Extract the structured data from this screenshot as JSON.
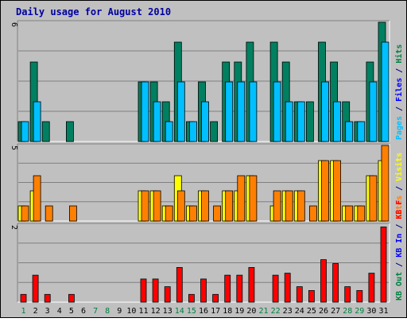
{
  "chart_data": {
    "type": "bar",
    "title": "Daily usage for August 2010",
    "days": [
      "1",
      "2",
      "3",
      "4",
      "5",
      "6",
      "7",
      "8",
      "9",
      "10",
      "11",
      "12",
      "13",
      "14",
      "15",
      "16",
      "17",
      "18",
      "19",
      "20",
      "21",
      "22",
      "23",
      "24",
      "25",
      "26",
      "27",
      "28",
      "29",
      "30",
      "31"
    ],
    "weekend_days": [
      1,
      7,
      8,
      14,
      15,
      21,
      22,
      28,
      29
    ],
    "panels": [
      {
        "max_label": "6",
        "ymax": 6,
        "legend": [
          {
            "text": "Hits",
            "color": "#008040"
          },
          {
            "text": "/",
            "color": "#000080"
          },
          {
            "text": "Files",
            "color": "#0000ff"
          },
          {
            "text": "/",
            "color": "#000080"
          },
          {
            "text": "Pages",
            "color": "#00c0ff"
          }
        ],
        "series": [
          {
            "name": "Hits",
            "color": "#008060",
            "values": [
              1,
              4,
              1,
              0,
              1,
              0,
              0,
              0,
              0,
              0,
              3,
              3,
              2,
              5,
              1,
              3,
              1,
              4,
              4,
              5,
              0,
              5,
              4,
              2,
              2,
              5,
              4,
              2,
              1,
              4,
              6
            ]
          },
          {
            "name": "Files",
            "color": "#00c0ff",
            "values": [
              1,
              2,
              0,
              0,
              0,
              0,
              0,
              0,
              0,
              0,
              3,
              2,
              1,
              3,
              1,
              2,
              0,
              3,
              3,
              3,
              0,
              3,
              2,
              2,
              0,
              3,
              2,
              1,
              1,
              3,
              5
            ]
          }
        ]
      },
      {
        "max_label": "5",
        "ymax": 5,
        "legend": [
          {
            "text": "Visits",
            "color": "#ffff00"
          },
          {
            "text": "/",
            "color": "#000080"
          },
          {
            "text": "Sites",
            "color": "#ff8000"
          }
        ],
        "series": [
          {
            "name": "Visits",
            "color": "#ffff00",
            "values": [
              1,
              2,
              0,
              0,
              0,
              0,
              0,
              0,
              0,
              0,
              2,
              2,
              1,
              3,
              1,
              2,
              0,
              2,
              2,
              3,
              0,
              1,
              2,
              2,
              0,
              4,
              4,
              1,
              1,
              3,
              4
            ]
          },
          {
            "name": "Sites",
            "color": "#ff8000",
            "values": [
              1,
              3,
              1,
              0,
              1,
              0,
              0,
              0,
              0,
              0,
              2,
              2,
              1,
              2,
              1,
              2,
              1,
              2,
              3,
              3,
              0,
              2,
              2,
              2,
              1,
              4,
              4,
              1,
              1,
              3,
              5
            ]
          }
        ]
      },
      {
        "max_label": "2",
        "ymax": 2,
        "legend": [
          {
            "text": "KB F",
            "color": "#ff0000"
          },
          {
            "text": "/",
            "color": "#000080"
          },
          {
            "text": "KB In",
            "color": "#0000ff"
          },
          {
            "text": "/",
            "color": "#000080"
          },
          {
            "text": "KB Out",
            "color": "#008040"
          }
        ],
        "series": [
          {
            "name": "KB F",
            "color": "#ff0000",
            "values": [
              0.2,
              0.7,
              0.2,
              0,
              0.2,
              0,
              0,
              0,
              0,
              0,
              0.6,
              0.6,
              0.4,
              0.9,
              0.2,
              0.6,
              0.2,
              0.7,
              0.7,
              0.9,
              0,
              0.7,
              0.75,
              0.4,
              0.3,
              1.1,
              1.0,
              0.4,
              0.3,
              0.75,
              1.95
            ]
          }
        ]
      }
    ]
  }
}
